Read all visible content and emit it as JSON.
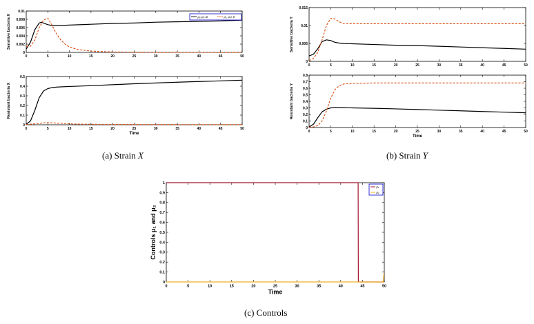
{
  "panels": [
    {
      "chart_data": {
        "type": "line",
        "ylabel": "Sensitive bacteria X",
        "xlabel": "",
        "xlim": [
          0,
          50
        ],
        "ylim": [
          0,
          0.01
        ],
        "xticks": [
          "0",
          "5",
          "10",
          "15",
          "20",
          "25",
          "30",
          "35",
          "40",
          "45",
          "50"
        ],
        "yticks": [
          "0",
          "0.002",
          "0.004",
          "0.006",
          "0.008",
          "0.01"
        ],
        "legend": {
          "placement": "top-right",
          "entries": [
            {
              "label": "μ₁=μ₂=0",
              "color": "#000000",
              "dash": "solid"
            },
            {
              "label": "μ₁, μ₂≠ 0",
              "color": "#d95319",
              "dash": "dashed"
            }
          ]
        },
        "series": [
          {
            "color": "#000000",
            "dash": "solid",
            "x": [
              0,
              1,
              2,
              3,
              3.5,
              4,
              5,
              6,
              7,
              8,
              10,
              15,
              20,
              25,
              30,
              35,
              40,
              45,
              50
            ],
            "y": [
              0.0008,
              0.0025,
              0.0055,
              0.0071,
              0.0073,
              0.0071,
              0.0067,
              0.0065,
              0.0065,
              0.0065,
              0.0066,
              0.0068,
              0.007,
              0.0071,
              0.0073,
              0.0074,
              0.0075,
              0.0076,
              0.0078
            ]
          },
          {
            "color": "#d95319",
            "dash": "dashed",
            "x": [
              0,
              1,
              2,
              3,
              4,
              5,
              6,
              7,
              8,
              9,
              10,
              12,
              15,
              20,
              25,
              30,
              40,
              50
            ],
            "y": [
              0.0015,
              0.0015,
              0.003,
              0.006,
              0.0078,
              0.0083,
              0.0065,
              0.0045,
              0.003,
              0.002,
              0.0013,
              0.0007,
              0.0003,
              0.0001,
              5e-05,
              2e-05,
              1e-05,
              0
            ]
          }
        ]
      }
    },
    {
      "chart_data": {
        "type": "line",
        "ylabel": "Resistant bacteria X",
        "xlabel": "Time",
        "xlim": [
          0,
          50
        ],
        "ylim": [
          0,
          0.5
        ],
        "xticks": [
          "0",
          "5",
          "10",
          "15",
          "20",
          "25",
          "30",
          "35",
          "40",
          "45",
          "50"
        ],
        "yticks": [
          "0",
          "0.1",
          "0.2",
          "0.3",
          "0.4",
          "0.5"
        ],
        "series": [
          {
            "color": "#000000",
            "dash": "solid",
            "x": [
              0,
              1,
              2,
              3,
              4,
              5,
              6,
              7,
              8,
              10,
              15,
              20,
              25,
              30,
              35,
              40,
              45,
              50
            ],
            "y": [
              0.005,
              0.04,
              0.15,
              0.28,
              0.35,
              0.375,
              0.385,
              0.39,
              0.393,
              0.397,
              0.405,
              0.415,
              0.425,
              0.433,
              0.441,
              0.448,
              0.455,
              0.462
            ]
          },
          {
            "color": "#d95319",
            "dash": "dashed",
            "x": [
              0,
              2,
              4,
              5,
              6,
              8,
              10,
              12,
              15,
              20,
              30,
              40,
              50
            ],
            "y": [
              0.002,
              0.01,
              0.02,
              0.022,
              0.02,
              0.015,
              0.01,
              0.007,
              0.005,
              0.003,
              0.002,
              0.001,
              0.001
            ]
          }
        ]
      }
    },
    {
      "chart_data": {
        "type": "line",
        "ylabel": "Sensitive bacteria Y",
        "xlabel": "",
        "xlim": [
          0,
          50
        ],
        "ylim": [
          0,
          0.015
        ],
        "xticks": [
          "0",
          "5",
          "10",
          "15",
          "20",
          "25",
          "30",
          "35",
          "40",
          "45",
          "50"
        ],
        "yticks": [
          "0",
          "0.005",
          "0.01",
          "0.015"
        ],
        "series": [
          {
            "color": "#000000",
            "dash": "solid",
            "x": [
              0,
              1,
              2,
              3,
              4,
              5,
              6,
              7,
              8,
              10,
              15,
              20,
              25,
              30,
              35,
              40,
              45,
              50
            ],
            "y": [
              0.0015,
              0.002,
              0.0035,
              0.0055,
              0.006,
              0.0058,
              0.0053,
              0.0051,
              0.005,
              0.0049,
              0.0047,
              0.0045,
              0.0044,
              0.0042,
              0.004,
              0.0038,
              0.0036,
              0.0034
            ]
          },
          {
            "color": "#d95319",
            "dash": "dashed",
            "x": [
              0,
              1,
              2,
              3,
              4,
              5,
              6,
              7,
              8,
              10,
              15,
              20,
              30,
              40,
              50
            ],
            "y": [
              0.0002,
              0.0008,
              0.0025,
              0.006,
              0.01,
              0.012,
              0.0118,
              0.011,
              0.0106,
              0.0105,
              0.0105,
              0.0105,
              0.0105,
              0.0105,
              0.0105
            ]
          }
        ]
      }
    },
    {
      "chart_data": {
        "type": "line",
        "ylabel": "Resistant bacteria Y",
        "xlabel": "Time",
        "xlim": [
          0,
          50
        ],
        "ylim": [
          0,
          0.8
        ],
        "xticks": [
          "0",
          "5",
          "10",
          "15",
          "20",
          "25",
          "30",
          "35",
          "40",
          "45",
          "50"
        ],
        "yticks": [
          "0",
          "0.1",
          "0.2",
          "0.3",
          "0.4",
          "0.5",
          "0.6",
          "0.7",
          "0.8"
        ],
        "series": [
          {
            "color": "#000000",
            "dash": "solid",
            "x": [
              0,
              1,
              2,
              3,
              4,
              5,
              6,
              7,
              8,
              10,
              15,
              20,
              25,
              30,
              35,
              40,
              45,
              50
            ],
            "y": [
              0.01,
              0.05,
              0.15,
              0.24,
              0.28,
              0.3,
              0.305,
              0.305,
              0.303,
              0.3,
              0.293,
              0.285,
              0.275,
              0.265,
              0.255,
              0.245,
              0.235,
              0.225
            ]
          },
          {
            "color": "#d95319",
            "dash": "dashed",
            "x": [
              0,
              1,
              2,
              3,
              4,
              5,
              6,
              7,
              8,
              9,
              10,
              15,
              20,
              30,
              40,
              50
            ],
            "y": [
              0.005,
              0.01,
              0.03,
              0.1,
              0.25,
              0.45,
              0.58,
              0.64,
              0.665,
              0.67,
              0.675,
              0.68,
              0.68,
              0.68,
              0.68,
              0.68
            ]
          }
        ]
      }
    },
    {
      "chart_data": {
        "type": "line",
        "ylabel": "Controls μ₁ and μ₂",
        "xlabel": "Time",
        "xlim": [
          0,
          50
        ],
        "ylim": [
          0,
          1
        ],
        "xticks": [
          "0",
          "5",
          "10",
          "15",
          "20",
          "25",
          "30",
          "35",
          "40",
          "45",
          "50"
        ],
        "yticks": [
          "0",
          "0.1",
          "0.2",
          "0.3",
          "0.4",
          "0.5",
          "0.6",
          "0.7",
          "0.8",
          "0.9",
          "1"
        ],
        "legend": {
          "placement": "top-right",
          "entries": [
            {
              "label": "μ₁",
              "color": "#a2142f",
              "dash": "solid"
            },
            {
              "label": "μ₂",
              "color": "#edb120",
              "dash": "solid"
            }
          ]
        },
        "series": [
          {
            "color": "#a2142f",
            "dash": "solid",
            "x": [
              0,
              44,
              44.05,
              50
            ],
            "y": [
              1,
              1,
              0,
              0
            ]
          },
          {
            "color": "#edb120",
            "dash": "solid",
            "x": [
              0,
              49.8,
              49.9,
              50
            ],
            "y": [
              0,
              0,
              0.08,
              0.08
            ]
          }
        ]
      }
    }
  ],
  "captions": {
    "a_prefix": "(a)  Strain ",
    "a_var": "X",
    "b_prefix": "(b)  Strain ",
    "b_var": "Y",
    "c_text": "(c)  Controls"
  }
}
